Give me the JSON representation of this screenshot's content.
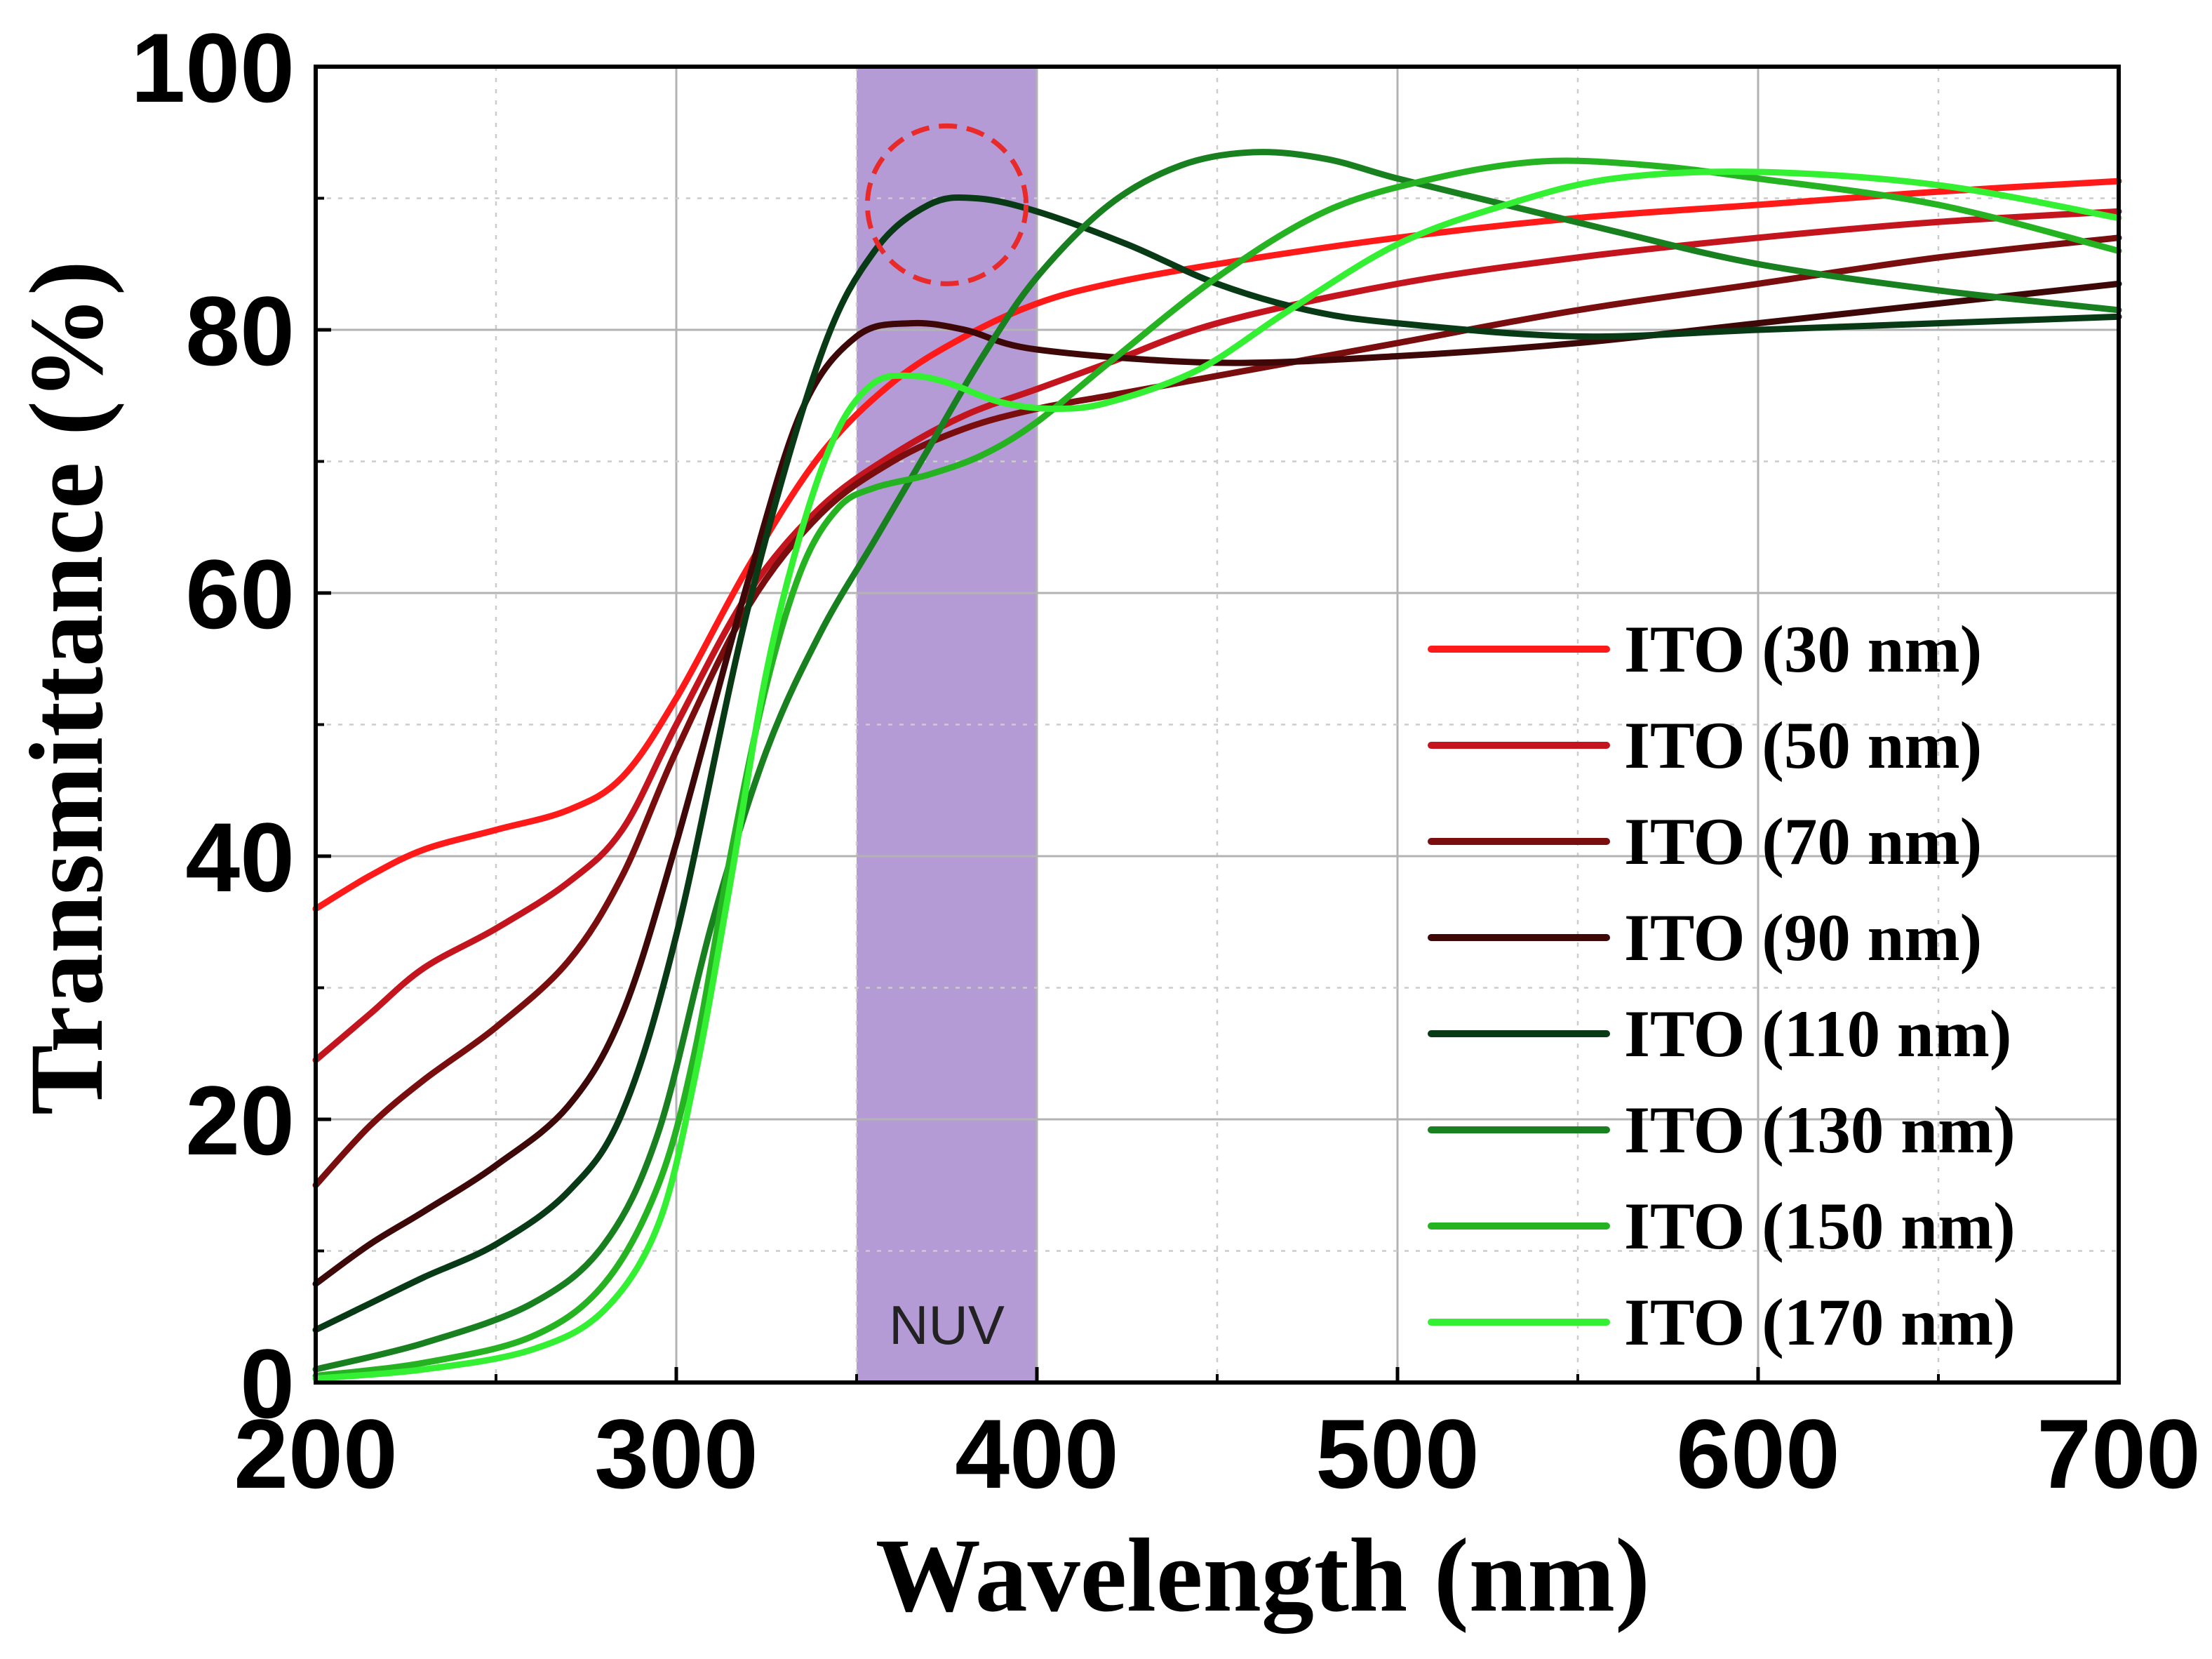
{
  "chart_data": {
    "type": "line",
    "title": "",
    "xlabel": "Wavelength (nm)",
    "ylabel": "Transmittance (%)",
    "xlim": [
      200,
      700
    ],
    "ylim": [
      0,
      100
    ],
    "xticks": [
      200,
      300,
      400,
      500,
      600,
      700
    ],
    "yticks": [
      0,
      20,
      40,
      60,
      80,
      100
    ],
    "grid": true,
    "legend_position": "lower-right",
    "band": {
      "label": "NUV",
      "x_start": 350,
      "x_end": 400,
      "color": "#b59bd6"
    },
    "highlight": {
      "x": 375,
      "y": 89.5,
      "rx": 22,
      "ry": 6,
      "color": "#e82a2a"
    },
    "series": [
      {
        "name": "ITO (30 nm)",
        "color": "#ff1a1a",
        "x": [
          200,
          215,
          230,
          250,
          270,
          285,
          300,
          320,
          340,
          360,
          380,
          400,
          420,
          450,
          500,
          550,
          600,
          650,
          700
        ],
        "y": [
          36,
          38.5,
          40.5,
          42,
          43.5,
          46,
          52,
          62,
          70.5,
          76,
          79.5,
          82,
          83.5,
          85,
          87,
          88.5,
          89.5,
          90.5,
          91.3
        ]
      },
      {
        "name": "ITO (50 nm)",
        "color": "#c4141d",
        "x": [
          200,
          215,
          230,
          250,
          270,
          285,
          300,
          320,
          340,
          360,
          380,
          400,
          420,
          450,
          500,
          550,
          600,
          650,
          700
        ],
        "y": [
          24.5,
          28,
          31.5,
          34.5,
          38,
          42,
          50,
          60,
          66.5,
          70.5,
          73.5,
          75.5,
          77.5,
          80.5,
          83.5,
          85.5,
          87,
          88.2,
          89
        ]
      },
      {
        "name": "ITO (70 nm)",
        "color": "#7a0d0d",
        "x": [
          200,
          215,
          230,
          250,
          270,
          285,
          300,
          320,
          340,
          360,
          380,
          400,
          420,
          450,
          500,
          550,
          600,
          650,
          700
        ],
        "y": [
          15,
          19.5,
          23,
          27,
          32,
          38.5,
          48,
          59,
          66,
          70,
          72.5,
          74,
          75,
          76.5,
          79,
          81.5,
          83.5,
          85.5,
          87
        ]
      },
      {
        "name": "ITO (90 nm)",
        "color": "#3f0808",
        "x": [
          200,
          215,
          230,
          250,
          270,
          285,
          300,
          320,
          335,
          350,
          365,
          380,
          400,
          450,
          500,
          550,
          600,
          650,
          700
        ],
        "y": [
          7.5,
          10.5,
          13,
          16.5,
          21,
          28,
          41,
          61,
          74,
          79.5,
          80.5,
          80,
          78.5,
          77.5,
          78,
          79,
          80.5,
          82,
          83.5
        ]
      },
      {
        "name": "ITO (110 nm)",
        "color": "#093a16",
        "x": [
          200,
          215,
          230,
          250,
          270,
          285,
          300,
          320,
          340,
          355,
          370,
          383,
          400,
          425,
          450,
          475,
          500,
          550,
          600,
          650,
          700
        ],
        "y": [
          4,
          6,
          8,
          10.5,
          14.5,
          20.5,
          34,
          59,
          78,
          86,
          89.5,
          90,
          89,
          86.5,
          83.5,
          81.5,
          80.5,
          79.5,
          80,
          80.5,
          81
        ]
      },
      {
        "name": "ITO (130 nm)",
        "color": "#18801f",
        "x": [
          200,
          230,
          260,
          280,
          295,
          310,
          325,
          340,
          355,
          370,
          385,
          400,
          420,
          440,
          460,
          480,
          500,
          530,
          560,
          600,
          650,
          700
        ],
        "y": [
          1,
          3,
          6,
          10.5,
          19,
          35,
          48,
          57,
          64,
          71,
          78,
          84,
          89.5,
          92.5,
          93.5,
          93,
          91.5,
          89.5,
          87.5,
          85,
          83,
          81.5
        ]
      },
      {
        "name": "ITO (150 nm)",
        "color": "#25b322",
        "x": [
          200,
          230,
          260,
          280,
          295,
          305,
          315,
          325,
          335,
          345,
          355,
          370,
          385,
          400,
          420,
          450,
          480,
          510,
          540,
          570,
          600,
          650,
          700
        ],
        "y": [
          0.5,
          1.5,
          3.5,
          7.5,
          15,
          25,
          40,
          53,
          62,
          66.5,
          68,
          69,
          70.5,
          73,
          77.5,
          84,
          89,
          91.5,
          92.8,
          92.5,
          91.5,
          89.5,
          86
        ]
      },
      {
        "name": "ITO (170 nm)",
        "color": "#33f033",
        "x": [
          200,
          230,
          260,
          280,
          295,
          305,
          315,
          325,
          335,
          345,
          355,
          365,
          375,
          390,
          405,
          420,
          445,
          470,
          500,
          530,
          560,
          600,
          650,
          700
        ],
        "y": [
          0.3,
          1,
          2.5,
          5.5,
          12,
          23,
          38,
          54,
          65,
          72.5,
          76,
          76.5,
          76,
          74.5,
          74,
          74.5,
          77,
          81.5,
          86.5,
          89.5,
          91.5,
          92,
          91,
          88.5
        ]
      }
    ]
  }
}
